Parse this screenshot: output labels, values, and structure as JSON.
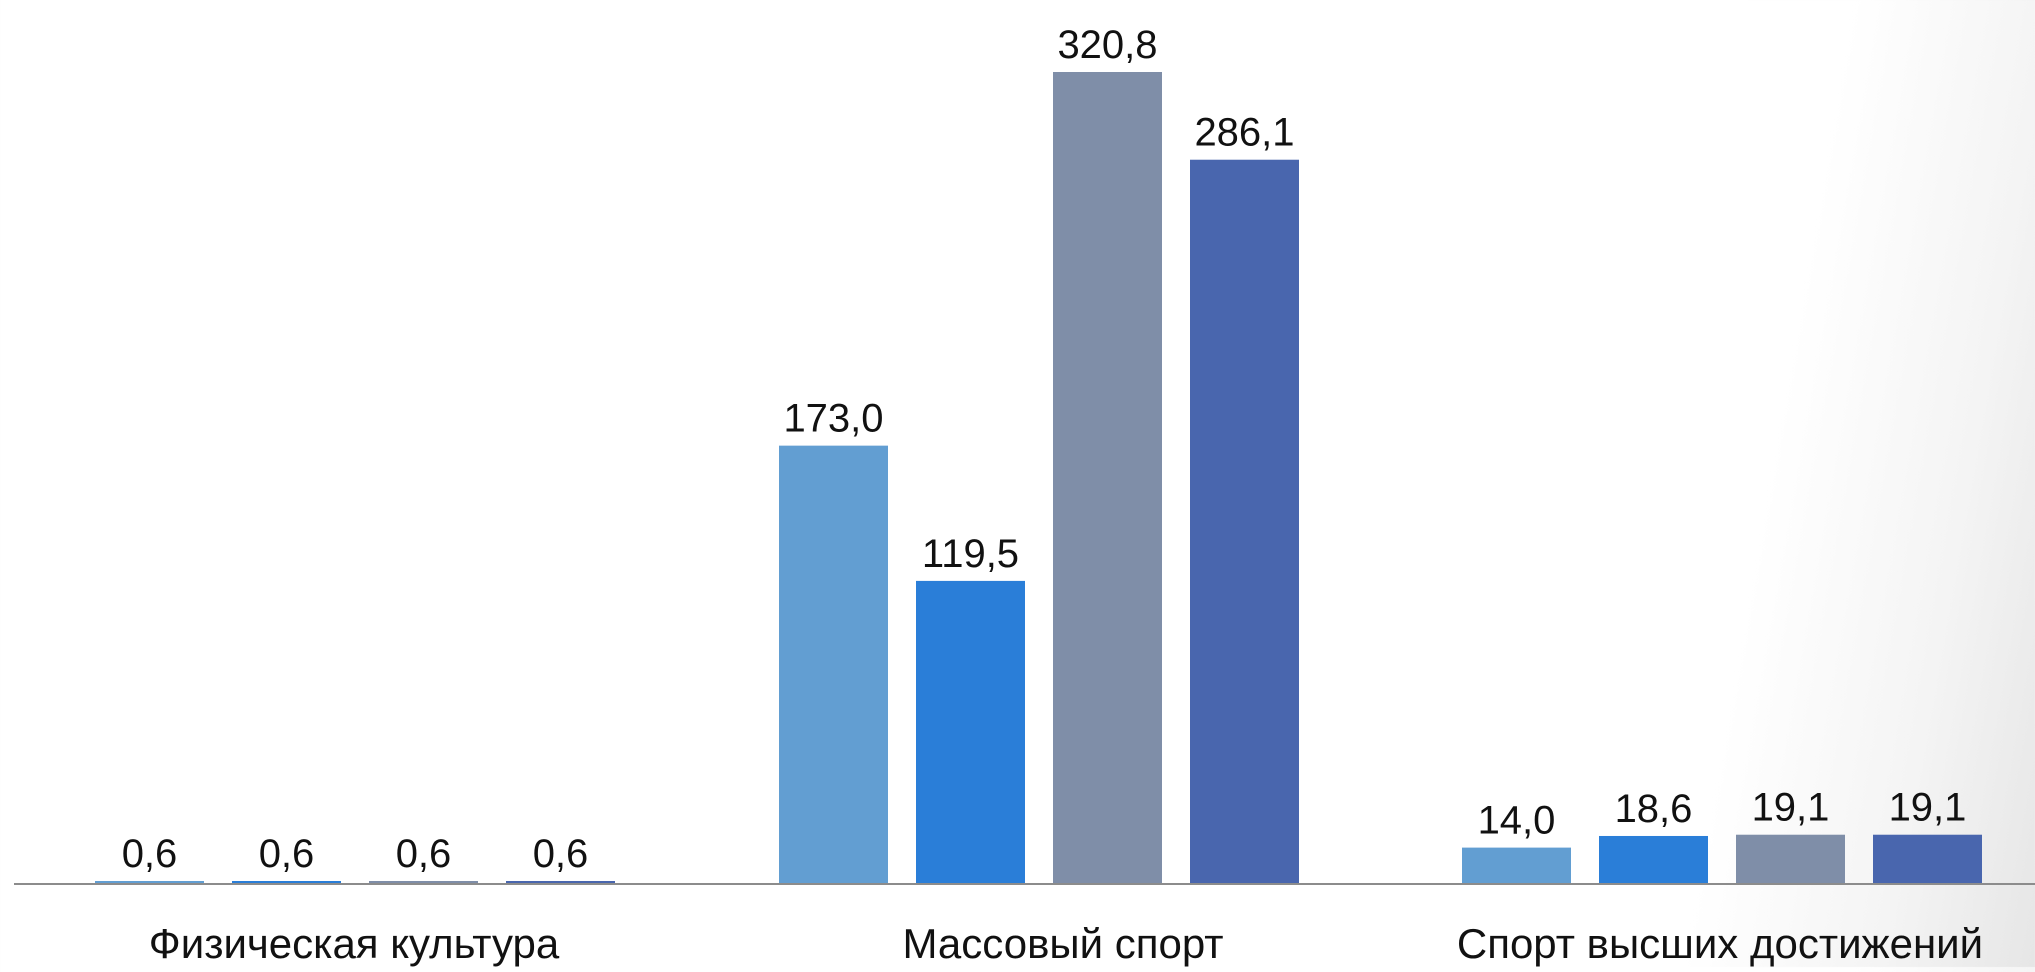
{
  "chart_data": {
    "type": "bar",
    "title": "",
    "xlabel": "",
    "ylabel": "",
    "categories": [
      "Физическая культура",
      "Массовый спорт",
      "Спорт высших достижений"
    ],
    "series": [
      {
        "color": "#629ed2",
        "values": [
          0.6,
          173.0,
          14.0
        ],
        "labels": [
          "0,6",
          "173,0",
          "14,0"
        ]
      },
      {
        "color": "#2a7ed8",
        "values": [
          0.6,
          119.5,
          18.6
        ],
        "labels": [
          "0,6",
          "119,5",
          "18,6"
        ]
      },
      {
        "color": "#7f8ea8",
        "values": [
          0.6,
          320.8,
          19.1
        ],
        "labels": [
          "0,6",
          "320,8",
          "19,1"
        ]
      },
      {
        "color": "#4966ae",
        "values": [
          0.6,
          286.1,
          19.1
        ],
        "labels": [
          "0,6",
          "286,1",
          "19,1"
        ]
      }
    ],
    "ylim": [
      0,
      320.8
    ],
    "grid": false,
    "legend": "none",
    "axis_color": "#8c8c8c"
  }
}
